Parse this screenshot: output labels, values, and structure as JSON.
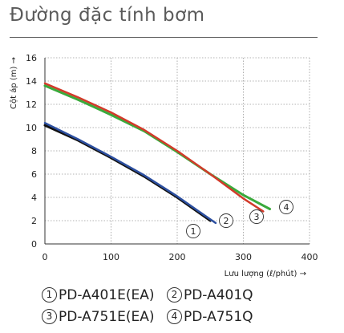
{
  "page": {
    "title": "Đường đặc tính bơm"
  },
  "chart_data": {
    "type": "line",
    "title": "Đường đặc tính bơm",
    "xlabel": "Lưu lượng (ℓ/phút) →",
    "ylabel": "Cột áp (m) →",
    "xlim": [
      0,
      400
    ],
    "ylim": [
      0,
      16
    ],
    "xticks": [
      0,
      100,
      200,
      300,
      400
    ],
    "yticks": [
      0,
      2,
      4,
      6,
      8,
      10,
      12,
      14,
      16
    ],
    "grid": true,
    "series": [
      {
        "name": "PD-A401E(EA)",
        "marker": "1",
        "color": "#111111",
        "x": [
          0,
          50,
          100,
          150,
          200,
          230,
          250
        ],
        "y": [
          10.2,
          8.9,
          7.4,
          5.8,
          4.0,
          2.8,
          2.0
        ]
      },
      {
        "name": "PD-A401Q",
        "marker": "2",
        "color": "#2c4fa0",
        "x": [
          0,
          50,
          100,
          150,
          200,
          230,
          258
        ],
        "y": [
          10.4,
          9.0,
          7.5,
          5.9,
          4.1,
          2.9,
          1.8
        ]
      },
      {
        "name": "PD-A751E(EA)",
        "marker": "3",
        "color": "#d23a2a",
        "x": [
          0,
          50,
          100,
          150,
          200,
          250,
          300,
          330
        ],
        "y": [
          13.8,
          12.6,
          11.3,
          9.8,
          8.0,
          6.0,
          3.9,
          2.8
        ]
      },
      {
        "name": "PD-A751Q",
        "marker": "4",
        "color": "#3aaa3c",
        "x": [
          0,
          50,
          100,
          150,
          200,
          250,
          300,
          340
        ],
        "y": [
          13.6,
          12.4,
          11.1,
          9.7,
          7.9,
          6.0,
          4.2,
          3.0
        ]
      }
    ],
    "legend": [
      "①PD-A401E(EA)",
      "②PD-A401Q",
      "③PD-A751E(EA)",
      "④PD-A751Q"
    ]
  }
}
